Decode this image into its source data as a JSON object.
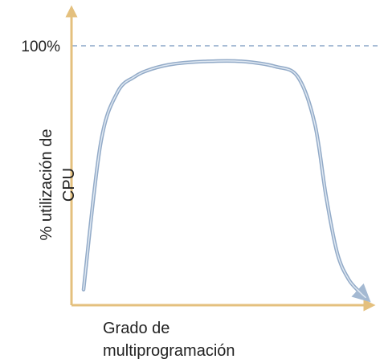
{
  "chart_data": {
    "type": "line",
    "title": "",
    "ylabel_lines": [
      "% utilización de",
      "CPU"
    ],
    "xlabel_lines": [
      "Grado de",
      "multiprogramación"
    ],
    "y_ticks": [
      {
        "label": "100%",
        "value": 100
      }
    ],
    "ylim": [
      0,
      100
    ],
    "grid": false,
    "reference_line": {
      "value": 100,
      "style": "dashed"
    },
    "series": [
      {
        "x": [
          0.0,
          0.06,
          0.12,
          0.18,
          0.24,
          0.32,
          0.44,
          0.56,
          0.68,
          0.76,
          0.82,
          0.86,
          0.9,
          0.94,
          0.98,
          1.0
        ],
        "values": [
          6,
          62,
          82,
          88,
          91,
          93,
          94,
          94,
          92,
          88,
          70,
          42,
          20,
          10,
          5,
          3
        ]
      }
    ],
    "colors": {
      "axis": "#e4c07e",
      "curve": "#a4b9d2",
      "reference": "#a8bdd6",
      "text": "#222222"
    }
  }
}
